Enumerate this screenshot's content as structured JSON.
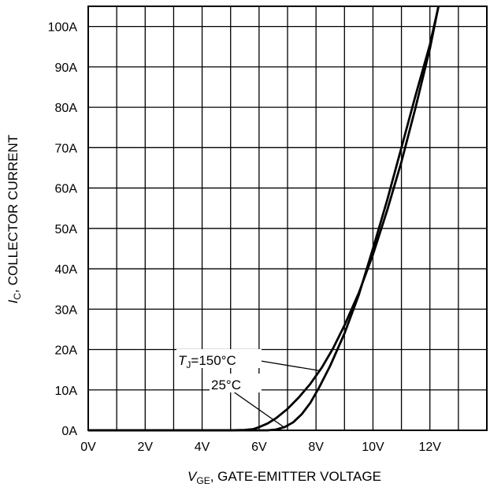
{
  "chart_data": {
    "type": "line",
    "xlabel": {
      "symbol": "V",
      "subscript": "GE",
      "text": ", GATE-EMITTER VOLTAGE"
    },
    "ylabel": {
      "symbol": "I",
      "subscript": "C",
      "text": ", COLLECTOR CURRENT"
    },
    "x_unit": "V",
    "y_unit": "A",
    "xlim": [
      0,
      14
    ],
    "ylim": [
      0,
      105
    ],
    "x_ticks": [
      0,
      2,
      4,
      6,
      8,
      10,
      12
    ],
    "y_ticks": [
      0,
      10,
      20,
      30,
      40,
      50,
      60,
      70,
      80,
      90,
      100
    ],
    "x_tick_labels": [
      "0V",
      "2V",
      "4V",
      "6V",
      "8V",
      "10V",
      "12V"
    ],
    "y_tick_labels": [
      "0A",
      "10A",
      "20A",
      "30A",
      "40A",
      "50A",
      "60A",
      "70A",
      "80A",
      "90A",
      "100A"
    ],
    "grid_x_step": 1,
    "grid_y_step": 10,
    "grid": true,
    "series": [
      {
        "name": "150°C",
        "color": "#000000",
        "x": [
          0,
          5,
          5.5,
          5.8,
          6.0,
          6.3,
          6.6,
          7.0,
          7.4,
          7.8,
          8.2,
          8.6,
          9.0,
          9.5,
          10.0,
          10.5,
          11.0,
          11.5,
          12.0,
          12.3
        ],
        "y": [
          0,
          0,
          0.1,
          0.3,
          0.8,
          1.7,
          3.0,
          5.3,
          8.2,
          11.5,
          15.5,
          20.3,
          26.0,
          34.0,
          43.5,
          54.5,
          66.5,
          80.0,
          94.5,
          105
        ]
      },
      {
        "name": "25°C",
        "color": "#000000",
        "x": [
          0,
          6.3,
          6.6,
          6.9,
          7.2,
          7.5,
          7.8,
          8.1,
          8.5,
          9.0,
          9.5,
          10.0,
          10.5,
          11.0,
          11.5,
          12.0,
          12.3
        ],
        "y": [
          0,
          0,
          0.2,
          0.8,
          2.0,
          4.0,
          6.8,
          10.5,
          16.0,
          24.0,
          33.5,
          45.0,
          57.0,
          70.0,
          83.0,
          95.5,
          105
        ]
      }
    ],
    "annotations": [
      {
        "label_symbol": "T",
        "label_subscript": "J",
        "label_text": "=150°C",
        "series": 0
      },
      {
        "label_text": "25°C",
        "series": 1
      }
    ]
  }
}
